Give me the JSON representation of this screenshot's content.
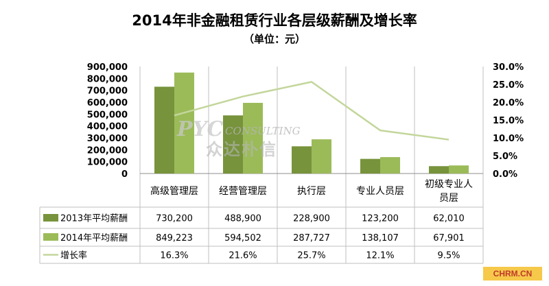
{
  "title": "2014年非金融租赁行业各层级薪酬及增长率",
  "subtitle": "（单位：元）",
  "watermark": {
    "line1": "PYC",
    "line2": "CONSULTING",
    "line3": "众达朴信"
  },
  "credit": "CHRM.CN",
  "colors": {
    "series2013": "#77933c",
    "series2014": "#9bbb59",
    "growth": "#c3d69b",
    "grid": "#d0d0d0"
  },
  "chart_data": {
    "type": "bar",
    "title": "2014年非金融租赁行业各层级薪酬及增长率",
    "subtitle": "（单位：元）",
    "categories": [
      "高级管理层",
      "经营管理层",
      "执行层",
      "专业人员层",
      "初级专业人员层"
    ],
    "category_display": [
      [
        "高级管理层"
      ],
      [
        "经营管理层"
      ],
      [
        "执行层"
      ],
      [
        "专业人员层"
      ],
      [
        "初级专业人",
        "员层"
      ]
    ],
    "series": [
      {
        "name": "2013年平均薪酬",
        "type": "bar",
        "axis": "left",
        "values": [
          730200,
          488900,
          228900,
          123200,
          62010
        ]
      },
      {
        "name": "2014年平均薪酬",
        "type": "bar",
        "axis": "left",
        "values": [
          849223,
          594502,
          287727,
          138107,
          67901
        ]
      },
      {
        "name": "增长率",
        "type": "line",
        "axis": "right",
        "values": [
          16.3,
          21.6,
          25.7,
          12.1,
          9.5
        ]
      }
    ],
    "ylim": [
      0,
      900000
    ],
    "yticks": [
      "900,000",
      "800,000",
      "700,000",
      "600,000",
      "500,000",
      "400,000",
      "300,000",
      "200,000",
      "100,000",
      "0"
    ],
    "y2lim": [
      0,
      30
    ],
    "y2ticks": [
      "30.0%",
      "25.0%",
      "20.0%",
      "15.0%",
      "10.0%",
      "5.0%",
      "0.0%"
    ],
    "data_table": [
      [
        "730,200",
        "488,900",
        "228,900",
        "123,200",
        "62,010"
      ],
      [
        "849,223",
        "594,502",
        "287,727",
        "138,107",
        "67,901"
      ],
      [
        "16.3%",
        "21.6%",
        "25.7%",
        "12.1%",
        "9.5%"
      ]
    ],
    "grid": false,
    "legend": "data-table"
  }
}
